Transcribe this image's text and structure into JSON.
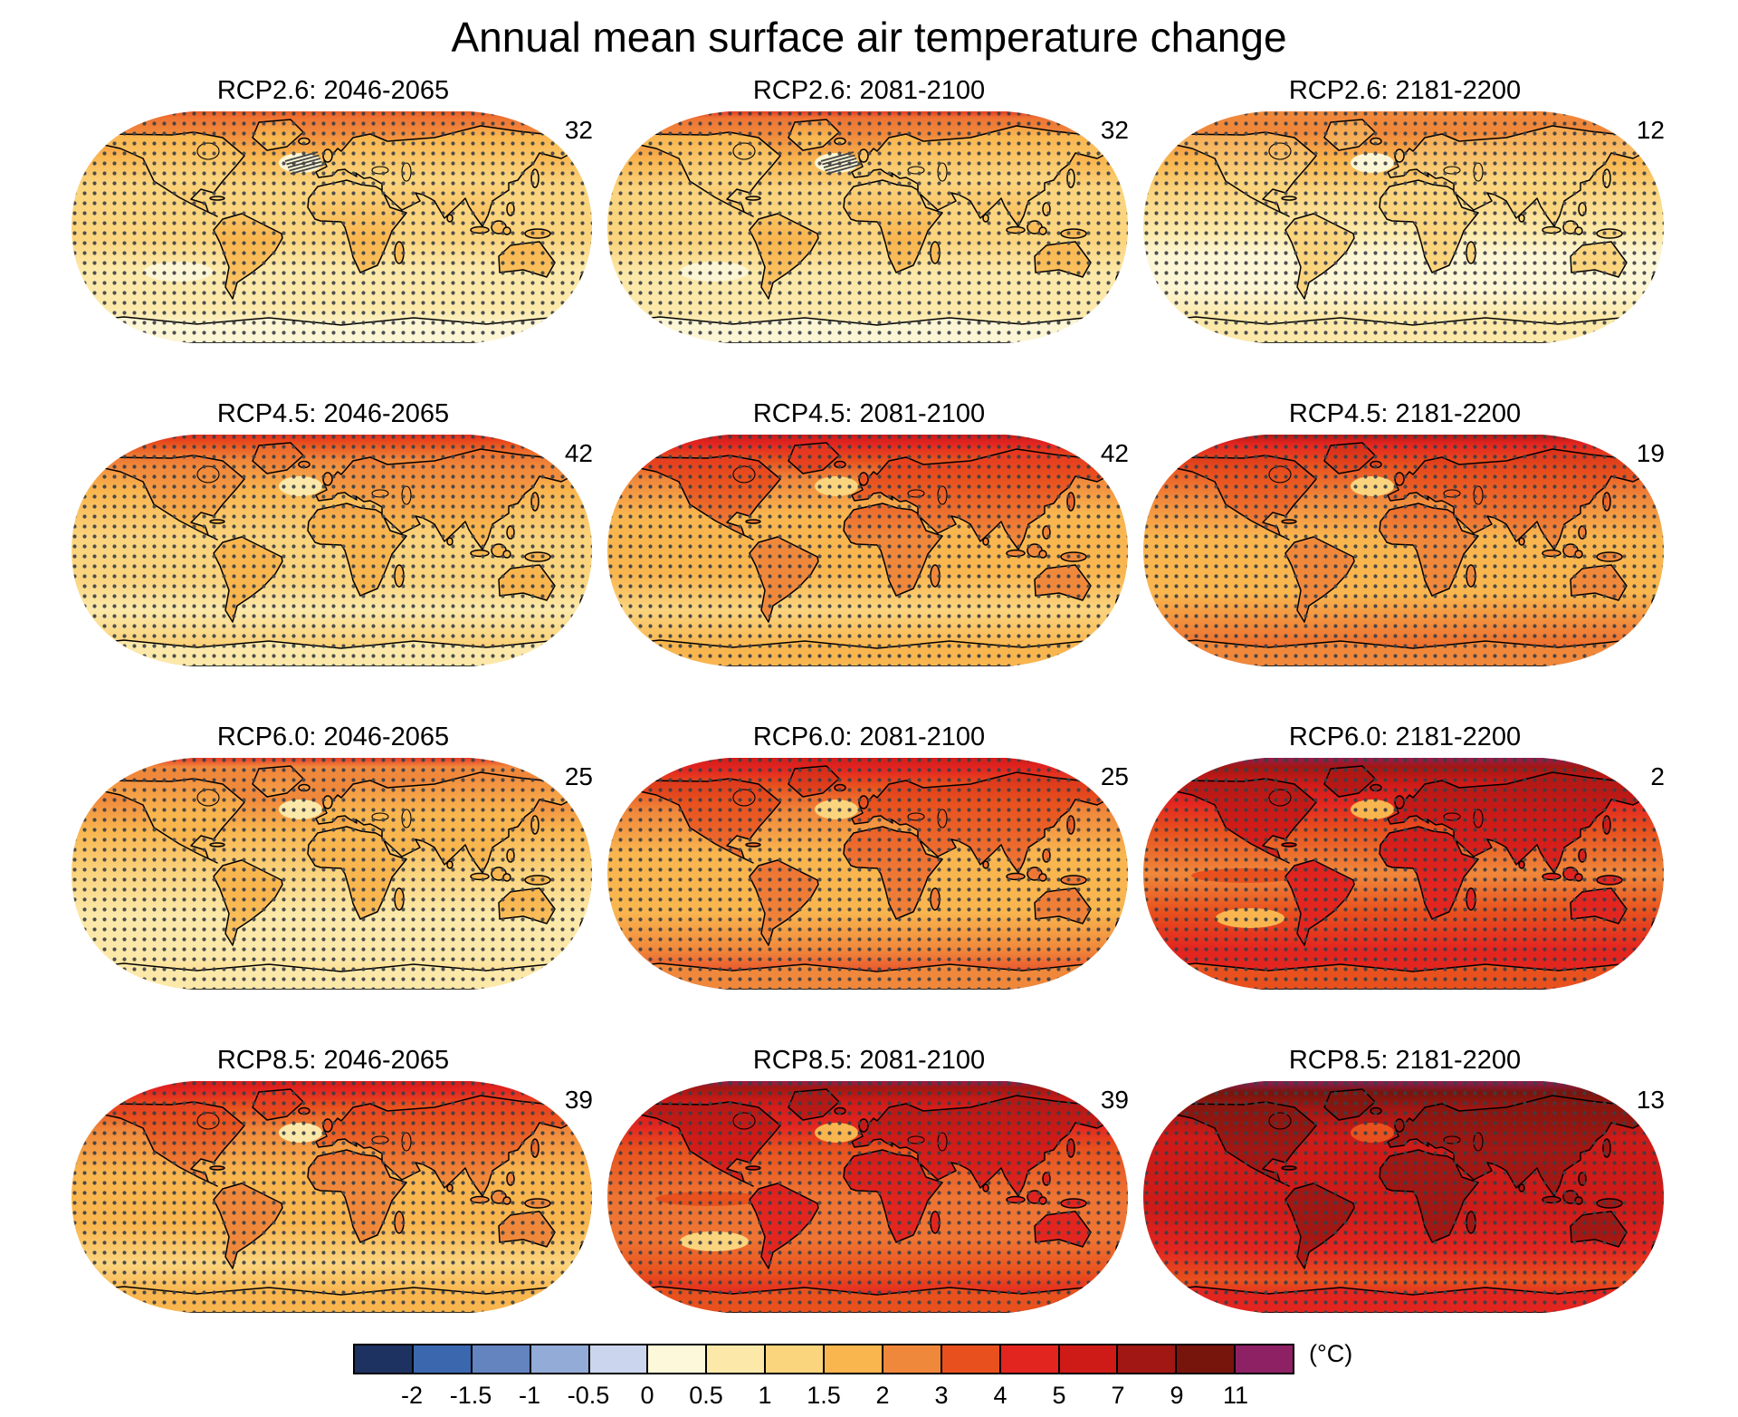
{
  "title": "Annual mean surface air temperature change",
  "chart_data": {
    "type": "heatmap",
    "subtype": "choropleth-world-map-grid",
    "title": "Annual mean surface air temperature change",
    "rows": [
      "RCP2.6",
      "RCP4.5",
      "RCP6.0",
      "RCP8.5"
    ],
    "columns": [
      "2046-2065",
      "2081-2100",
      "2181-2200"
    ],
    "legend_position": "bottom",
    "stippling": "dark dots over regions of robust change",
    "panels": [
      {
        "title": "RCP2.6: 2046-2065",
        "scenario": "RCP2.6",
        "period": "2046-2065",
        "count": 32,
        "hatch": true,
        "ocean": [
          [
            0,
            "#E8511E"
          ],
          [
            0.04,
            "#EE7433"
          ],
          [
            0.1,
            "#F0883B"
          ],
          [
            0.2,
            "#F9B64F"
          ],
          [
            0.32,
            "#FBD47E"
          ],
          [
            0.55,
            "#FBD47E"
          ],
          [
            0.68,
            "#FCE9A9"
          ],
          [
            0.84,
            "#FCE9A9"
          ],
          [
            0.95,
            "#FDF6D5"
          ],
          [
            1,
            "#FCE9A9"
          ]
        ],
        "land": [
          [
            0,
            "#EE7433"
          ],
          [
            0.12,
            "#F9B64F"
          ],
          [
            0.3,
            "#FBD47E"
          ],
          [
            0.55,
            "#F9B64F"
          ],
          [
            1,
            "#FBD47E"
          ]
        ],
        "ant": "#FDF6D5",
        "natl": "#FDF6D5",
        "south": "#FDF6D5",
        "eq": null
      },
      {
        "title": "RCP2.6: 2081-2100",
        "scenario": "RCP2.6",
        "period": "2081-2100",
        "count": 32,
        "hatch": true,
        "ocean": [
          [
            0,
            "#E32520"
          ],
          [
            0.04,
            "#EE7433"
          ],
          [
            0.11,
            "#F0883B"
          ],
          [
            0.22,
            "#F9B64F"
          ],
          [
            0.34,
            "#FBD47E"
          ],
          [
            0.56,
            "#FBD47E"
          ],
          [
            0.7,
            "#FCE9A9"
          ],
          [
            0.86,
            "#FCE9A9"
          ],
          [
            1,
            "#FDF6D5"
          ]
        ],
        "land": [
          [
            0,
            "#EE7433"
          ],
          [
            0.12,
            "#F9B64F"
          ],
          [
            0.3,
            "#FBD47E"
          ],
          [
            0.55,
            "#F9B64F"
          ],
          [
            1,
            "#FBD47E"
          ]
        ],
        "ant": "#FDF6D5",
        "natl": "#FDF6D5",
        "south": "#FDF6D5",
        "eq": null
      },
      {
        "title": "RCP2.6: 2181-2200",
        "scenario": "RCP2.6",
        "period": "2181-2200",
        "count": 12,
        "hatch": false,
        "ocean": [
          [
            0,
            "#F0883B"
          ],
          [
            0.1,
            "#F0883B"
          ],
          [
            0.22,
            "#F9B64F"
          ],
          [
            0.35,
            "#FBD47E"
          ],
          [
            0.52,
            "#FCE9A9"
          ],
          [
            0.62,
            "#FDF6D5"
          ],
          [
            0.75,
            "#FDF6D5"
          ],
          [
            0.88,
            "#FCE9A9"
          ],
          [
            1,
            "#FCE9A9"
          ]
        ],
        "land": [
          [
            0,
            "#F2953F"
          ],
          [
            0.3,
            "#FBD47E"
          ],
          [
            1,
            "#FBD47E"
          ]
        ],
        "ant": "#FCE9A9",
        "natl": "#FDF6D5",
        "south": "#FDF6D5",
        "eq": null
      },
      {
        "title": "RCP4.5: 2046-2065",
        "scenario": "RCP4.5",
        "period": "2046-2065",
        "count": 42,
        "hatch": false,
        "ocean": [
          [
            0,
            "#E32520"
          ],
          [
            0.05,
            "#E8511E"
          ],
          [
            0.12,
            "#F0883B"
          ],
          [
            0.25,
            "#F9B64F"
          ],
          [
            0.45,
            "#FBD47E"
          ],
          [
            0.62,
            "#FBD47E"
          ],
          [
            0.75,
            "#FCE9A9"
          ],
          [
            0.88,
            "#FBD47E"
          ],
          [
            1,
            "#F9B64F"
          ]
        ],
        "land": [
          [
            0,
            "#E8511E"
          ],
          [
            0.15,
            "#F0883B"
          ],
          [
            0.4,
            "#F9B64F"
          ],
          [
            1,
            "#F9B64F"
          ]
        ],
        "ant": "#FCE9A9",
        "natl": "#FCE9A9",
        "south": null,
        "eq": null
      },
      {
        "title": "RCP4.5: 2081-2100",
        "scenario": "RCP4.5",
        "period": "2081-2100",
        "count": 42,
        "hatch": false,
        "ocean": [
          [
            0,
            "#C1181A"
          ],
          [
            0.05,
            "#E32520"
          ],
          [
            0.12,
            "#E8511E"
          ],
          [
            0.2,
            "#F0883B"
          ],
          [
            0.35,
            "#F9B64F"
          ],
          [
            0.6,
            "#F9B64F"
          ],
          [
            0.75,
            "#FBD47E"
          ],
          [
            0.9,
            "#F9B64F"
          ],
          [
            1,
            "#F0883B"
          ]
        ],
        "land": [
          [
            0,
            "#E32520"
          ],
          [
            0.2,
            "#E8511E"
          ],
          [
            0.45,
            "#F0883B"
          ],
          [
            0.8,
            "#F0883B"
          ],
          [
            1,
            "#F9B64F"
          ]
        ],
        "ant": "#F9B64F",
        "natl": "#FBD47E",
        "south": null,
        "eq": null
      },
      {
        "title": "RCP4.5: 2181-2200",
        "scenario": "RCP4.5",
        "period": "2181-2200",
        "count": 19,
        "hatch": false,
        "ocean": [
          [
            0,
            "#A11713"
          ],
          [
            0.05,
            "#E32520"
          ],
          [
            0.14,
            "#E8511E"
          ],
          [
            0.28,
            "#F0883B"
          ],
          [
            0.45,
            "#F9B64F"
          ],
          [
            0.68,
            "#F9B64F"
          ],
          [
            0.82,
            "#F0883B"
          ],
          [
            1,
            "#E8511E"
          ]
        ],
        "land": [
          [
            0,
            "#CE1B18"
          ],
          [
            0.18,
            "#E8511E"
          ],
          [
            0.45,
            "#F0883B"
          ],
          [
            1,
            "#F0883B"
          ]
        ],
        "ant": "#F0883B",
        "natl": "#FBD47E",
        "south": null,
        "eq": null
      },
      {
        "title": "RCP6.0: 2046-2065",
        "scenario": "RCP6.0",
        "period": "2046-2065",
        "count": 25,
        "hatch": false,
        "ocean": [
          [
            0,
            "#E32520"
          ],
          [
            0.05,
            "#F0883B"
          ],
          [
            0.18,
            "#F0883B"
          ],
          [
            0.32,
            "#F9B64F"
          ],
          [
            0.5,
            "#FBD47E"
          ],
          [
            0.68,
            "#FCE9A9"
          ],
          [
            0.85,
            "#FCE9A9"
          ],
          [
            1,
            "#FBD47E"
          ]
        ],
        "land": [
          [
            0,
            "#EE7433"
          ],
          [
            0.25,
            "#F9B64F"
          ],
          [
            0.6,
            "#F9B64F"
          ],
          [
            1,
            "#FBD47E"
          ]
        ],
        "ant": "#FCE9A9",
        "natl": "#FCE9A9",
        "south": null,
        "eq": null
      },
      {
        "title": "RCP6.0: 2081-2100",
        "scenario": "RCP6.0",
        "period": "2081-2100",
        "count": 25,
        "hatch": false,
        "ocean": [
          [
            0,
            "#CE1B18"
          ],
          [
            0.06,
            "#E32520"
          ],
          [
            0.13,
            "#E8511E"
          ],
          [
            0.24,
            "#F0883B"
          ],
          [
            0.42,
            "#F9B64F"
          ],
          [
            0.66,
            "#F9B64F"
          ],
          [
            0.82,
            "#F0883B"
          ],
          [
            1,
            "#E32520"
          ]
        ],
        "land": [
          [
            0,
            "#CE1B18"
          ],
          [
            0.2,
            "#E8511E"
          ],
          [
            0.45,
            "#EE7433"
          ],
          [
            0.8,
            "#F0883B"
          ],
          [
            1,
            "#F0883B"
          ]
        ],
        "ant": "#F0883B",
        "natl": "#FBD47E",
        "south": null,
        "eq": null
      },
      {
        "title": "RCP6.0: 2181-2200",
        "scenario": "RCP6.0",
        "period": "2181-2200",
        "count": 2,
        "hatch": false,
        "ocean": [
          [
            0,
            "#8E2164"
          ],
          [
            0.05,
            "#A11713"
          ],
          [
            0.12,
            "#CE1B18"
          ],
          [
            0.2,
            "#E32520"
          ],
          [
            0.32,
            "#E8511E"
          ],
          [
            0.5,
            "#F0883B"
          ],
          [
            0.66,
            "#E8511E"
          ],
          [
            0.82,
            "#E32520"
          ],
          [
            0.93,
            "#E32520"
          ],
          [
            1,
            "#CE1B18"
          ]
        ],
        "land": [
          [
            0,
            "#A11713"
          ],
          [
            0.28,
            "#CE1B18"
          ],
          [
            0.55,
            "#E32520"
          ],
          [
            1,
            "#E32520"
          ]
        ],
        "ant": "#E8511E",
        "natl": "#F9B64F",
        "south": "#F9B64F",
        "eq": "#E8511E"
      },
      {
        "title": "RCP8.5: 2046-2065",
        "scenario": "RCP8.5",
        "period": "2046-2065",
        "count": 39,
        "hatch": false,
        "ocean": [
          [
            0,
            "#CE1B18"
          ],
          [
            0.05,
            "#E32520"
          ],
          [
            0.12,
            "#E8511E"
          ],
          [
            0.22,
            "#F0883B"
          ],
          [
            0.4,
            "#F9B64F"
          ],
          [
            0.62,
            "#F9B64F"
          ],
          [
            0.78,
            "#FBD47E"
          ],
          [
            0.9,
            "#F9B64F"
          ],
          [
            1,
            "#F9B64F"
          ]
        ],
        "land": [
          [
            0,
            "#E32520"
          ],
          [
            0.18,
            "#E8511E"
          ],
          [
            0.42,
            "#F0883B"
          ],
          [
            0.75,
            "#F0883B"
          ],
          [
            1,
            "#F9B64F"
          ]
        ],
        "ant": "#F9B64F",
        "natl": "#FCE9A9",
        "south": null,
        "eq": null
      },
      {
        "title": "RCP8.5: 2081-2100",
        "scenario": "RCP8.5",
        "period": "2081-2100",
        "count": 39,
        "hatch": false,
        "ocean": [
          [
            0,
            "#8E2164"
          ],
          [
            0.04,
            "#A11713"
          ],
          [
            0.1,
            "#CE1B18"
          ],
          [
            0.2,
            "#E32520"
          ],
          [
            0.3,
            "#E8511E"
          ],
          [
            0.5,
            "#EE7433"
          ],
          [
            0.68,
            "#EE7433"
          ],
          [
            0.82,
            "#E8511E"
          ],
          [
            0.92,
            "#E32520"
          ],
          [
            1,
            "#CE1B18"
          ]
        ],
        "land": [
          [
            0,
            "#A11713"
          ],
          [
            0.25,
            "#CE1B18"
          ],
          [
            0.55,
            "#E32520"
          ],
          [
            0.85,
            "#E32520"
          ],
          [
            1,
            "#CE1B18"
          ]
        ],
        "ant": "#E8511E",
        "natl": "#F9B64F",
        "south": "#FBD47E",
        "eq": "#E8511E"
      },
      {
        "title": "RCP8.5: 2181-2200",
        "scenario": "RCP8.5",
        "period": "2181-2200",
        "count": 13,
        "hatch": false,
        "ocean": [
          [
            0,
            "#8E2164"
          ],
          [
            0.06,
            "#77150C"
          ],
          [
            0.13,
            "#A11713"
          ],
          [
            0.25,
            "#CE1B18"
          ],
          [
            0.55,
            "#CE1B18"
          ],
          [
            0.72,
            "#E32520"
          ],
          [
            0.85,
            "#E8511E"
          ],
          [
            0.94,
            "#E32520"
          ],
          [
            1,
            "#CE1B18"
          ]
        ],
        "land": [
          [
            0,
            "#77150C"
          ],
          [
            0.3,
            "#A11713"
          ],
          [
            0.65,
            "#A11713"
          ],
          [
            1,
            "#CE1B18"
          ]
        ],
        "ant": "#E32520",
        "natl": "#E8511E",
        "south": null,
        "eq": null
      }
    ],
    "colorbar": {
      "unit": "(°C)",
      "tick_labels": [
        "-2",
        "-1.5",
        "-1",
        "-0.5",
        "0",
        "0.5",
        "1",
        "1.5",
        "2",
        "3",
        "4",
        "5",
        "7",
        "9",
        "11"
      ],
      "boundaries": [
        -2,
        -1.5,
        -1,
        -0.5,
        0,
        0.5,
        1,
        1.5,
        2,
        3,
        4,
        5,
        7,
        9,
        11
      ],
      "colors": [
        "#1D3260",
        "#3A67AE",
        "#6484C0",
        "#93ABD7",
        "#CBD5ED",
        "#FCF8D9",
        "#FCE9A9",
        "#FBD47E",
        "#F9B64F",
        "#F0883B",
        "#E8511E",
        "#E32520",
        "#CE1B18",
        "#A11713",
        "#77150C",
        "#8E2164"
      ]
    }
  }
}
